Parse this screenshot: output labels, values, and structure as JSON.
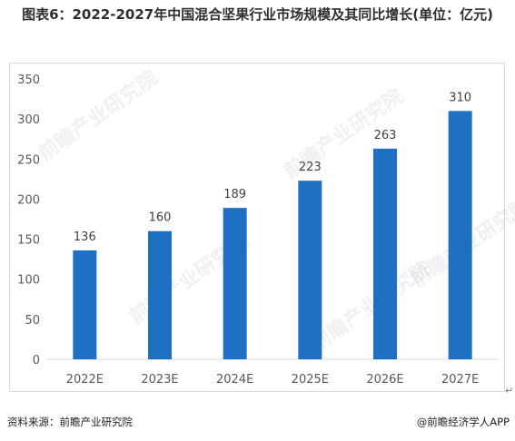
{
  "title": "图表6：2022-2027年中国混合坚果行业市场规模及其同比增长(单位：亿元)",
  "watermark": "前瞻产业研究院",
  "return_mark": "↵",
  "footer": {
    "source": "资料来源：前瞻产业研究院",
    "brand": "@前瞻经济学人APP"
  },
  "colors": {
    "bar": "#1f6fc5",
    "axis": "#d9d9d9",
    "text": "#595959"
  },
  "chart_data": {
    "type": "bar",
    "title": "图表6：2022-2027年中国混合坚果行业市场规模及其同比增长(单位：亿元)",
    "categories": [
      "2022E",
      "2023E",
      "2024E",
      "2025E",
      "2026E",
      "2027E"
    ],
    "series": [
      {
        "values": [
          136,
          160,
          189,
          223,
          263,
          310
        ]
      }
    ],
    "data_labels": [
      "136",
      "160",
      "189",
      "223",
      "263",
      "310"
    ],
    "yticks": [
      "0",
      "50",
      "100",
      "150",
      "200",
      "250",
      "300",
      "350"
    ],
    "ylim": [
      0,
      350
    ],
    "xlabel": "",
    "ylabel": "",
    "grid": false,
    "legend": "none"
  }
}
